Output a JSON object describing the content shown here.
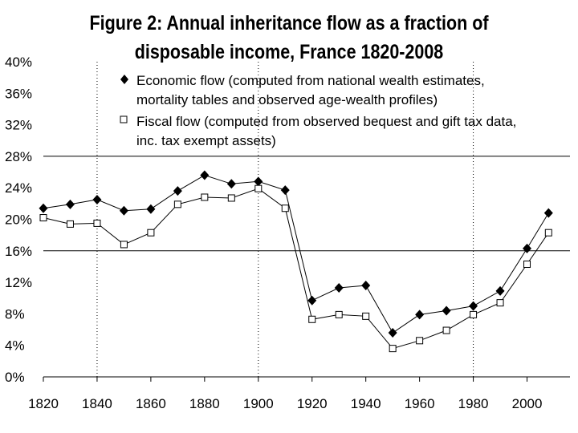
{
  "chart_data": {
    "type": "line",
    "title_lines": [
      "Figure 2: Annual inheritance flow as a fraction of",
      "disposable income, France 1820-2008"
    ],
    "xlabel": "",
    "ylabel": "",
    "xlim": [
      1820,
      2010
    ],
    "ylim": [
      0,
      40
    ],
    "x_ticks": [
      1820,
      1840,
      1860,
      1880,
      1900,
      1920,
      1940,
      1960,
      1980,
      2000
    ],
    "y_ticks": [
      0,
      4,
      8,
      12,
      16,
      20,
      24,
      28,
      32,
      36,
      40
    ],
    "y_tick_labels": [
      "0%",
      "4%",
      "8%",
      "12%",
      "16%",
      "20%",
      "24%",
      "28%",
      "32%",
      "36%",
      "40%"
    ],
    "solid_gridlines_y": [
      16,
      28
    ],
    "dotted_gridlines_x": [
      1840,
      1900,
      1980
    ],
    "legend_position": "top-center",
    "series": [
      {
        "name": "Economic flow",
        "legend_lines": [
          "Economic flow (computed from national wealth estimates,",
          "mortality tables and observed age-wealth profiles)"
        ],
        "marker": "filled-diamond",
        "x": [
          1820,
          1830,
          1840,
          1850,
          1860,
          1870,
          1880,
          1890,
          1900,
          1910,
          1920,
          1930,
          1940,
          1950,
          1960,
          1970,
          1980,
          1990,
          2000,
          2008
        ],
        "values": [
          21.4,
          21.9,
          22.5,
          21.1,
          21.3,
          23.6,
          25.6,
          24.5,
          24.8,
          23.7,
          9.7,
          11.3,
          11.6,
          5.6,
          7.9,
          8.4,
          9.0,
          10.9,
          16.3,
          20.8
        ]
      },
      {
        "name": "Fiscal flow",
        "legend_lines": [
          "Fiscal flow (computed from observed bequest and gift tax data,",
          "inc. tax exempt assets)"
        ],
        "marker": "hollow-square",
        "x": [
          1820,
          1830,
          1840,
          1850,
          1860,
          1870,
          1880,
          1890,
          1900,
          1910,
          1920,
          1930,
          1940,
          1950,
          1960,
          1970,
          1980,
          1990,
          2000,
          2008
        ],
        "values": [
          20.2,
          19.4,
          19.5,
          16.8,
          18.3,
          21.9,
          22.8,
          22.7,
          23.9,
          21.4,
          7.3,
          7.9,
          7.7,
          3.6,
          4.6,
          5.9,
          7.9,
          9.4,
          14.3,
          18.3
        ]
      }
    ]
  }
}
